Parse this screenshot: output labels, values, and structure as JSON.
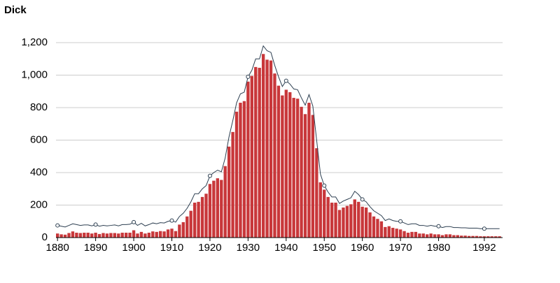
{
  "chart_data": {
    "type": "bar-line",
    "title": "Dick",
    "x": [
      1880,
      1881,
      1882,
      1883,
      1884,
      1885,
      1886,
      1887,
      1888,
      1889,
      1890,
      1891,
      1892,
      1893,
      1894,
      1895,
      1896,
      1897,
      1898,
      1899,
      1900,
      1901,
      1902,
      1903,
      1904,
      1905,
      1906,
      1907,
      1908,
      1909,
      1910,
      1911,
      1912,
      1913,
      1914,
      1915,
      1916,
      1917,
      1918,
      1919,
      1920,
      1921,
      1922,
      1923,
      1924,
      1925,
      1926,
      1927,
      1928,
      1929,
      1930,
      1931,
      1932,
      1933,
      1934,
      1935,
      1936,
      1937,
      1938,
      1939,
      1940,
      1941,
      1942,
      1943,
      1944,
      1945,
      1946,
      1947,
      1948,
      1949,
      1950,
      1951,
      1952,
      1953,
      1954,
      1955,
      1956,
      1957,
      1958,
      1959,
      1960,
      1961,
      1962,
      1963,
      1964,
      1965,
      1966,
      1967,
      1968,
      1969,
      1970,
      1971,
      1972,
      1973,
      1974,
      1975,
      1976,
      1977,
      1978,
      1979,
      1980,
      1981,
      1982,
      1983,
      1984,
      1985,
      1986,
      1987,
      1988,
      1989,
      1990,
      1991,
      1992,
      1993,
      1994,
      1995,
      1996
    ],
    "series": [
      {
        "kind": "bar",
        "color": "#c8373a",
        "values": [
          25,
          20,
          18,
          28,
          38,
          30,
          28,
          30,
          30,
          25,
          30,
          22,
          28,
          25,
          28,
          28,
          25,
          30,
          30,
          30,
          45,
          25,
          35,
          25,
          30,
          38,
          35,
          40,
          38,
          50,
          55,
          40,
          80,
          95,
          130,
          165,
          215,
          220,
          250,
          270,
          330,
          350,
          365,
          355,
          440,
          560,
          650,
          775,
          830,
          840,
          960,
          995,
          1050,
          1045,
          1130,
          1095,
          1090,
          1010,
          935,
          875,
          910,
          895,
          860,
          855,
          805,
          760,
          830,
          755,
          550,
          340,
          295,
          250,
          215,
          215,
          170,
          185,
          195,
          205,
          235,
          220,
          190,
          185,
          155,
          130,
          115,
          100,
          65,
          70,
          60,
          55,
          50,
          40,
          30,
          35,
          35,
          25,
          25,
          20,
          25,
          20,
          20,
          15,
          20,
          20,
          15,
          15,
          12,
          12,
          10,
          10,
          10,
          8,
          8,
          8,
          8,
          8,
          8
        ]
      },
      {
        "kind": "line",
        "color": "#2c3e50",
        "values": [
          75,
          70,
          65,
          75,
          85,
          80,
          75,
          78,
          78,
          72,
          80,
          70,
          75,
          72,
          75,
          78,
          72,
          80,
          80,
          82,
          95,
          75,
          88,
          72,
          80,
          90,
          85,
          92,
          90,
          100,
          105,
          95,
          130,
          150,
          180,
          220,
          270,
          270,
          300,
          320,
          380,
          400,
          415,
          405,
          490,
          620,
          720,
          830,
          885,
          895,
          990,
          1030,
          1100,
          1100,
          1180,
          1150,
          1140,
          1060,
          990,
          930,
          965,
          945,
          915,
          910,
          860,
          815,
          880,
          810,
          600,
          390,
          320,
          280,
          250,
          250,
          210,
          225,
          235,
          245,
          285,
          265,
          235,
          220,
          190,
          165,
          150,
          135,
          105,
          115,
          105,
          100,
          100,
          90,
          80,
          85,
          85,
          75,
          75,
          70,
          75,
          70,
          70,
          62,
          68,
          68,
          62,
          62,
          60,
          60,
          58,
          58,
          58,
          55,
          55,
          55,
          55,
          55,
          55
        ]
      }
    ],
    "xlim": [
      1879.6,
      1996.8
    ],
    "xticks": [
      1880,
      1890,
      1900,
      1910,
      1920,
      1930,
      1940,
      1950,
      1960,
      1970,
      1980,
      1992
    ],
    "ylim": [
      0,
      1200
    ],
    "yticks": [
      0,
      200,
      400,
      600,
      800,
      {
        "value": 1000,
        "label": "1,000"
      },
      {
        "value": 1200,
        "label": "1,200"
      }
    ],
    "grid": true
  }
}
